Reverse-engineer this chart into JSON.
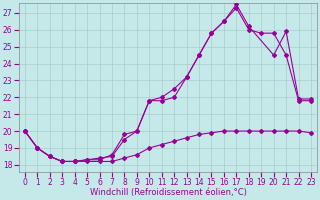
{
  "xlabel": "Windchill (Refroidissement éolien,°C)",
  "background_color": "#c5e8e8",
  "grid_color": "#aacccc",
  "line_color": "#990099",
  "x_ticks": [
    0,
    1,
    2,
    3,
    4,
    5,
    6,
    7,
    8,
    9,
    10,
    11,
    12,
    13,
    14,
    15,
    16,
    17,
    18,
    19,
    20,
    21,
    22,
    23
  ],
  "y_ticks": [
    18,
    19,
    20,
    21,
    22,
    23,
    24,
    25,
    26,
    27
  ],
  "ylim": [
    17.6,
    27.6
  ],
  "xlim": [
    -0.5,
    23.5
  ],
  "line1_x": [
    0,
    1,
    2,
    3,
    4,
    5,
    6,
    7,
    8,
    9,
    10,
    11,
    12,
    13,
    14,
    15,
    16,
    17,
    18,
    19,
    20,
    21,
    22,
    23
  ],
  "line1_y": [
    20.0,
    19.0,
    18.5,
    18.2,
    18.2,
    18.2,
    18.2,
    18.2,
    18.4,
    18.6,
    19.0,
    19.2,
    19.4,
    19.6,
    19.8,
    19.9,
    20.0,
    20.0,
    20.0,
    20.0,
    20.0,
    20.0,
    20.0,
    19.9
  ],
  "line2_x": [
    0,
    1,
    2,
    3,
    4,
    5,
    6,
    7,
    8,
    9,
    10,
    11,
    12,
    13,
    14,
    15,
    16,
    17,
    18,
    19,
    20,
    21,
    22,
    23
  ],
  "line2_y": [
    20.0,
    19.0,
    18.5,
    18.2,
    18.2,
    18.3,
    18.3,
    18.6,
    19.8,
    20.0,
    21.8,
    21.8,
    22.0,
    23.2,
    24.5,
    25.8,
    26.5,
    27.3,
    26.0,
    25.8,
    25.8,
    24.5,
    21.8,
    21.8
  ],
  "line3_x": [
    0,
    1,
    2,
    3,
    4,
    5,
    6,
    7,
    8,
    9,
    10,
    11,
    12,
    13,
    14,
    15,
    16,
    17,
    18,
    20,
    21,
    22,
    23
  ],
  "line3_y": [
    20.0,
    19.0,
    18.5,
    18.2,
    18.2,
    18.3,
    18.4,
    18.5,
    19.5,
    20.0,
    21.8,
    22.0,
    22.5,
    23.2,
    24.5,
    25.8,
    26.5,
    27.5,
    26.2,
    24.5,
    25.9,
    21.9,
    21.9
  ],
  "marker": "D",
  "markersize": 2.0,
  "linewidth": 0.8,
  "tick_fontsize": 5.5,
  "xlabel_fontsize": 6.0
}
